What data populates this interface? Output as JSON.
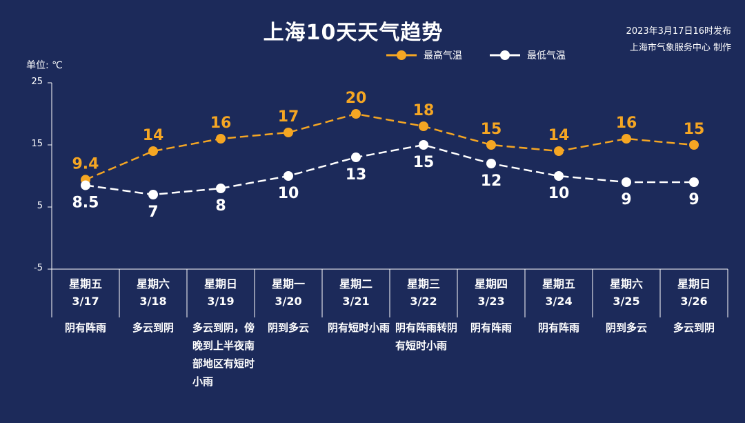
{
  "header": {
    "title": "上海10天天气趋势",
    "source_line1": "2023年3月17日16时发布",
    "source_line2": "上海市气象服务中心 制作"
  },
  "unit_label": "单位: ℃",
  "legend": {
    "high": "最高气温",
    "low": "最低气温"
  },
  "colors": {
    "background": "#1c2a5a",
    "high": "#f5a623",
    "low": "#ffffff",
    "axis": "#ffffff"
  },
  "chart_data": {
    "type": "line",
    "title": "上海10天天气趋势",
    "ylabel": "单位: ℃",
    "ylim": [
      -5,
      25
    ],
    "yticks": [
      25,
      15,
      5,
      -5
    ],
    "categories": [
      "3/17",
      "3/18",
      "3/19",
      "3/20",
      "3/21",
      "3/22",
      "3/23",
      "3/24",
      "3/25",
      "3/26"
    ],
    "series": [
      {
        "name": "最高气温",
        "values": [
          9.4,
          14,
          16,
          17,
          20,
          18,
          15,
          14,
          16,
          15
        ],
        "labels": [
          "9.4",
          "14",
          "16",
          "17",
          "20",
          "18",
          "15",
          "14",
          "16",
          "15"
        ]
      },
      {
        "name": "最低气温",
        "values": [
          8.5,
          7,
          8,
          10,
          13,
          15,
          12,
          10,
          9,
          9
        ],
        "labels": [
          "8.5",
          "7",
          "8",
          "10",
          "13",
          "15",
          "12",
          "10",
          "9",
          "9"
        ]
      }
    ],
    "legend_position": "top-center",
    "grid": false
  },
  "days": [
    {
      "weekday": "星期五",
      "date": "3/17",
      "condition": "阴有阵雨"
    },
    {
      "weekday": "星期六",
      "date": "3/18",
      "condition": "多云到阴"
    },
    {
      "weekday": "星期日",
      "date": "3/19",
      "condition": "多云到阴，傍晚到上半夜南部地区有短时小雨"
    },
    {
      "weekday": "星期一",
      "date": "3/20",
      "condition": "阴到多云"
    },
    {
      "weekday": "星期二",
      "date": "3/21",
      "condition": "阴有短时小雨"
    },
    {
      "weekday": "星期三",
      "date": "3/22",
      "condition": "阴有阵雨转阴有短时小雨"
    },
    {
      "weekday": "星期四",
      "date": "3/23",
      "condition": "阴有阵雨"
    },
    {
      "weekday": "星期五",
      "date": "3/24",
      "condition": "阴有阵雨"
    },
    {
      "weekday": "星期六",
      "date": "3/25",
      "condition": "阴到多云"
    },
    {
      "weekday": "星期日",
      "date": "3/26",
      "condition": "多云到阴"
    }
  ]
}
